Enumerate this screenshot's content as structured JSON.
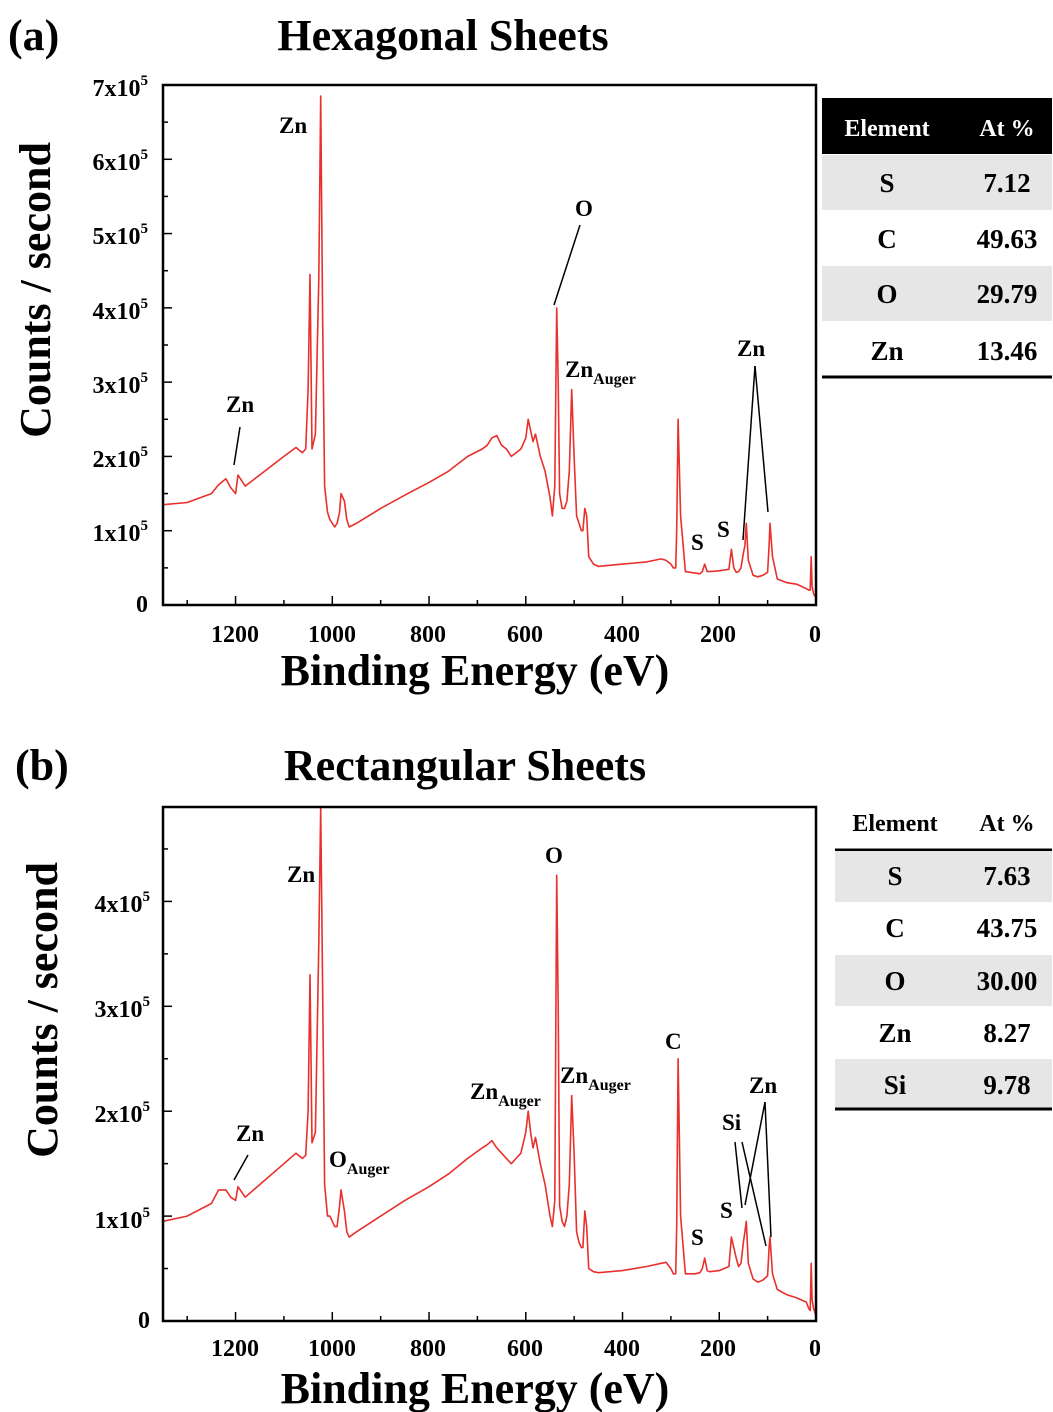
{
  "panels": [
    {
      "label": "(a)",
      "title": "Hexagonal Sheets",
      "ylabel": "Counts / second",
      "xlabel": "Binding Energy (eV)",
      "xticks": [
        "1200",
        "1000",
        "800",
        "600",
        "400",
        "200",
        "0"
      ],
      "yticks": [
        {
          "base": "0",
          "exp": ""
        },
        {
          "base": "1x10",
          "exp": "5"
        },
        {
          "base": "2x10",
          "exp": "5"
        },
        {
          "base": "3x10",
          "exp": "5"
        },
        {
          "base": "4x10",
          "exp": "5"
        },
        {
          "base": "5x10",
          "exp": "5"
        },
        {
          "base": "6x10",
          "exp": "5"
        },
        {
          "base": "7x10",
          "exp": "5"
        }
      ],
      "annotations": [
        {
          "text": "Zn",
          "sub": ""
        },
        {
          "text": "Zn",
          "sub": ""
        },
        {
          "text": "O",
          "sub": ""
        },
        {
          "text": "Zn",
          "sub": "Auger"
        },
        {
          "text": "Zn",
          "sub": ""
        },
        {
          "text": "S",
          "sub": ""
        },
        {
          "text": "S",
          "sub": ""
        }
      ],
      "table": {
        "headers": [
          "Element",
          "At %"
        ],
        "rows": [
          [
            "S",
            "7.12"
          ],
          [
            "C",
            "49.63"
          ],
          [
            "O",
            "29.79"
          ],
          [
            "Zn",
            "13.46"
          ]
        ]
      }
    },
    {
      "label": "(b)",
      "title": "Rectangular Sheets",
      "ylabel": "Counts / second",
      "xlabel": "Binding Energy (eV)",
      "xticks": [
        "1200",
        "1000",
        "800",
        "600",
        "400",
        "200",
        "0"
      ],
      "yticks": [
        {
          "base": "0",
          "exp": ""
        },
        {
          "base": "1x10",
          "exp": "5"
        },
        {
          "base": "2x10",
          "exp": "5"
        },
        {
          "base": "3x10",
          "exp": "5"
        },
        {
          "base": "4x10",
          "exp": "5"
        }
      ],
      "annotations": [
        {
          "text": "Zn",
          "sub": ""
        },
        {
          "text": "Zn",
          "sub": ""
        },
        {
          "text": "O",
          "sub": "Auger"
        },
        {
          "text": "Zn",
          "sub": "Auger"
        },
        {
          "text": "O",
          "sub": ""
        },
        {
          "text": "Zn",
          "sub": "Auger"
        },
        {
          "text": "C",
          "sub": ""
        },
        {
          "text": "S",
          "sub": ""
        },
        {
          "text": "Si",
          "sub": ""
        },
        {
          "text": "S",
          "sub": ""
        },
        {
          "text": "Zn",
          "sub": ""
        }
      ],
      "table": {
        "headers": [
          "Element",
          "At %"
        ],
        "rows": [
          [
            "S",
            "7.63"
          ],
          [
            "C",
            "43.75"
          ],
          [
            "O",
            "30.00"
          ],
          [
            "Zn",
            "8.27"
          ],
          [
            "Si",
            "9.78"
          ]
        ]
      }
    }
  ],
  "chart_data": [
    {
      "type": "line",
      "title": "Hexagonal Sheets",
      "xlabel": "Binding Energy (eV)",
      "ylabel": "Counts / second",
      "xlim": [
        1350,
        0
      ],
      "ylim": [
        0,
        700000
      ],
      "x_reversed": true,
      "color": "#e8302c",
      "x": [
        1350,
        1300,
        1250,
        1235,
        1220,
        1210,
        1200,
        1195,
        1180,
        1150,
        1100,
        1075,
        1062,
        1055,
        1050,
        1046,
        1042,
        1035,
        1028,
        1024,
        1020,
        1016,
        1010,
        1005,
        1000,
        995,
        990,
        985,
        982,
        975,
        970,
        965,
        950,
        900,
        850,
        800,
        760,
        720,
        690,
        680,
        670,
        660,
        650,
        640,
        630,
        620,
        610,
        600,
        595,
        590,
        585,
        580,
        570,
        560,
        550,
        545,
        540,
        536,
        533,
        530,
        525,
        520,
        515,
        510,
        505,
        500,
        495,
        490,
        485,
        482,
        478,
        474,
        470,
        460,
        450,
        400,
        350,
        320,
        310,
        300,
        295,
        290,
        288,
        285,
        280,
        270,
        250,
        240,
        235,
        230,
        225,
        220,
        200,
        180,
        175,
        170,
        165,
        160,
        155,
        150,
        147,
        144,
        140,
        130,
        120,
        110,
        105,
        100,
        97,
        95,
        90,
        80,
        60,
        40,
        30,
        20,
        15,
        12,
        10,
        8,
        5,
        0
      ],
      "y": [
        135000,
        138000,
        150000,
        162000,
        170000,
        158000,
        150000,
        175000,
        160000,
        175000,
        200000,
        212000,
        205000,
        210000,
        290000,
        445000,
        210000,
        230000,
        440000,
        685000,
        390000,
        160000,
        125000,
        115000,
        110000,
        105000,
        110000,
        125000,
        150000,
        140000,
        115000,
        105000,
        110000,
        130000,
        148000,
        165000,
        180000,
        200000,
        210000,
        215000,
        225000,
        228000,
        215000,
        210000,
        200000,
        205000,
        210000,
        225000,
        250000,
        235000,
        220000,
        230000,
        200000,
        180000,
        145000,
        120000,
        160000,
        400000,
        300000,
        150000,
        130000,
        130000,
        140000,
        180000,
        290000,
        200000,
        120000,
        110000,
        100000,
        100000,
        130000,
        120000,
        65000,
        55000,
        52000,
        55000,
        58000,
        62000,
        60000,
        55000,
        50000,
        50000,
        100000,
        250000,
        120000,
        45000,
        43000,
        42000,
        45000,
        55000,
        45000,
        45000,
        46000,
        48000,
        75000,
        50000,
        44000,
        45000,
        50000,
        70000,
        80000,
        110000,
        60000,
        40000,
        38000,
        40000,
        42000,
        44000,
        80000,
        110000,
        65000,
        35000,
        30000,
        28000,
        25000,
        22000,
        20000,
        20000,
        65000,
        25000,
        15000,
        10000
      ]
    },
    {
      "type": "line",
      "title": "Rectangular Sheets",
      "xlabel": "Binding Energy (eV)",
      "ylabel": "Counts / second",
      "xlim": [
        1350,
        0
      ],
      "ylim": [
        0,
        490000
      ],
      "x_reversed": true,
      "color": "#e8302c",
      "x": [
        1350,
        1300,
        1250,
        1235,
        1220,
        1210,
        1200,
        1195,
        1180,
        1150,
        1100,
        1075,
        1062,
        1055,
        1050,
        1046,
        1042,
        1035,
        1028,
        1024,
        1020,
        1016,
        1010,
        1005,
        1000,
        995,
        990,
        985,
        982,
        975,
        970,
        965,
        950,
        900,
        850,
        800,
        760,
        720,
        690,
        680,
        670,
        660,
        650,
        640,
        630,
        620,
        610,
        600,
        595,
        590,
        585,
        580,
        570,
        560,
        550,
        545,
        540,
        536,
        533,
        530,
        525,
        520,
        515,
        510,
        505,
        500,
        495,
        490,
        485,
        482,
        478,
        474,
        470,
        460,
        450,
        400,
        350,
        320,
        310,
        300,
        295,
        290,
        288,
        285,
        280,
        270,
        250,
        240,
        235,
        230,
        225,
        220,
        200,
        180,
        175,
        170,
        165,
        160,
        155,
        150,
        147,
        144,
        140,
        130,
        120,
        110,
        105,
        100,
        97,
        95,
        90,
        80,
        60,
        40,
        30,
        20,
        15,
        12,
        10,
        8,
        5,
        0
      ],
      "y": [
        95000,
        100000,
        112000,
        125000,
        125000,
        118000,
        115000,
        128000,
        118000,
        130000,
        150000,
        160000,
        155000,
        158000,
        200000,
        330000,
        170000,
        180000,
        360000,
        495000,
        320000,
        130000,
        100000,
        100000,
        95000,
        90000,
        90000,
        110000,
        125000,
        105000,
        85000,
        80000,
        85000,
        100000,
        115000,
        128000,
        140000,
        155000,
        165000,
        168000,
        172000,
        165000,
        160000,
        155000,
        150000,
        155000,
        160000,
        180000,
        200000,
        180000,
        165000,
        175000,
        150000,
        130000,
        100000,
        90000,
        115000,
        425000,
        300000,
        110000,
        95000,
        90000,
        100000,
        130000,
        215000,
        160000,
        85000,
        75000,
        70000,
        70000,
        105000,
        90000,
        50000,
        47000,
        46000,
        48000,
        52000,
        55000,
        56000,
        50000,
        45000,
        45000,
        90000,
        250000,
        100000,
        45000,
        45000,
        46000,
        50000,
        60000,
        48000,
        47000,
        48000,
        52000,
        80000,
        70000,
        60000,
        52000,
        55000,
        75000,
        85000,
        95000,
        55000,
        40000,
        37000,
        39000,
        41000,
        43000,
        70000,
        80000,
        45000,
        30000,
        25000,
        22000,
        20000,
        18000,
        12000,
        10000,
        55000,
        20000,
        12000,
        5000
      ]
    }
  ]
}
